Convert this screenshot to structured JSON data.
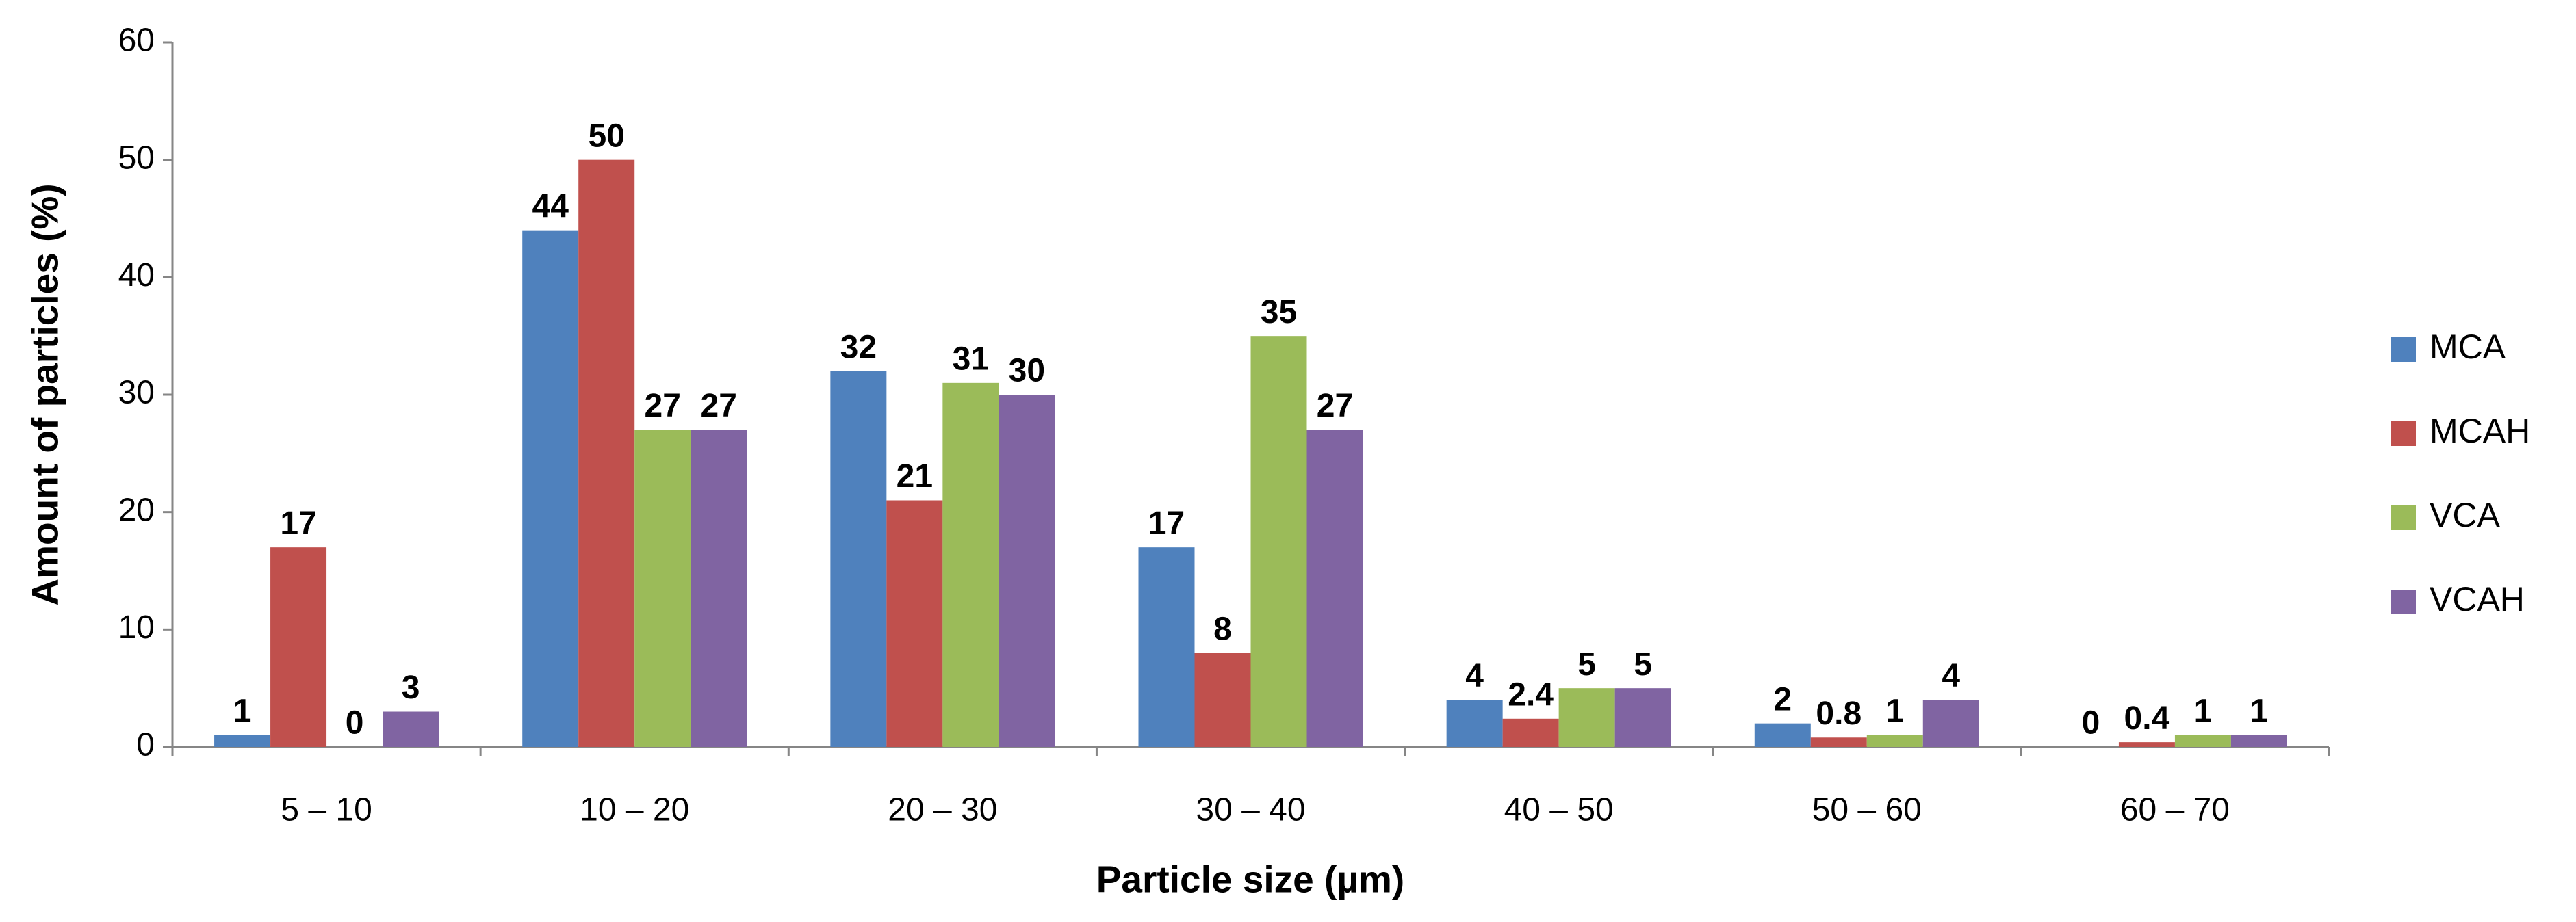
{
  "chart_data": {
    "type": "bar",
    "x_label": "Particle size (µm)",
    "y_label": "Amount of particles (%)",
    "categories": [
      "5 – 10",
      "10 – 20",
      "20 – 30",
      "30 – 40",
      "40 – 50",
      "50 – 60",
      "60 – 70"
    ],
    "series": [
      {
        "name": "MCA",
        "color": "#4f81bd",
        "values": [
          1,
          44,
          32,
          17,
          4,
          2,
          0
        ]
      },
      {
        "name": "MCAH",
        "color": "#c0504d",
        "values": [
          17,
          50,
          21,
          8,
          2.4,
          0.8,
          0.4
        ]
      },
      {
        "name": "VCA",
        "color": "#9bbb59",
        "values": [
          0,
          27,
          31,
          35,
          5,
          1,
          1
        ]
      },
      {
        "name": "VCAH",
        "color": "#8064a2",
        "values": [
          3,
          27,
          30,
          27,
          5,
          4,
          1
        ]
      }
    ],
    "ylim": [
      0,
      60
    ],
    "yticks": [
      0,
      10,
      20,
      30,
      40,
      50,
      60
    ],
    "grid": false,
    "legend": "right"
  }
}
